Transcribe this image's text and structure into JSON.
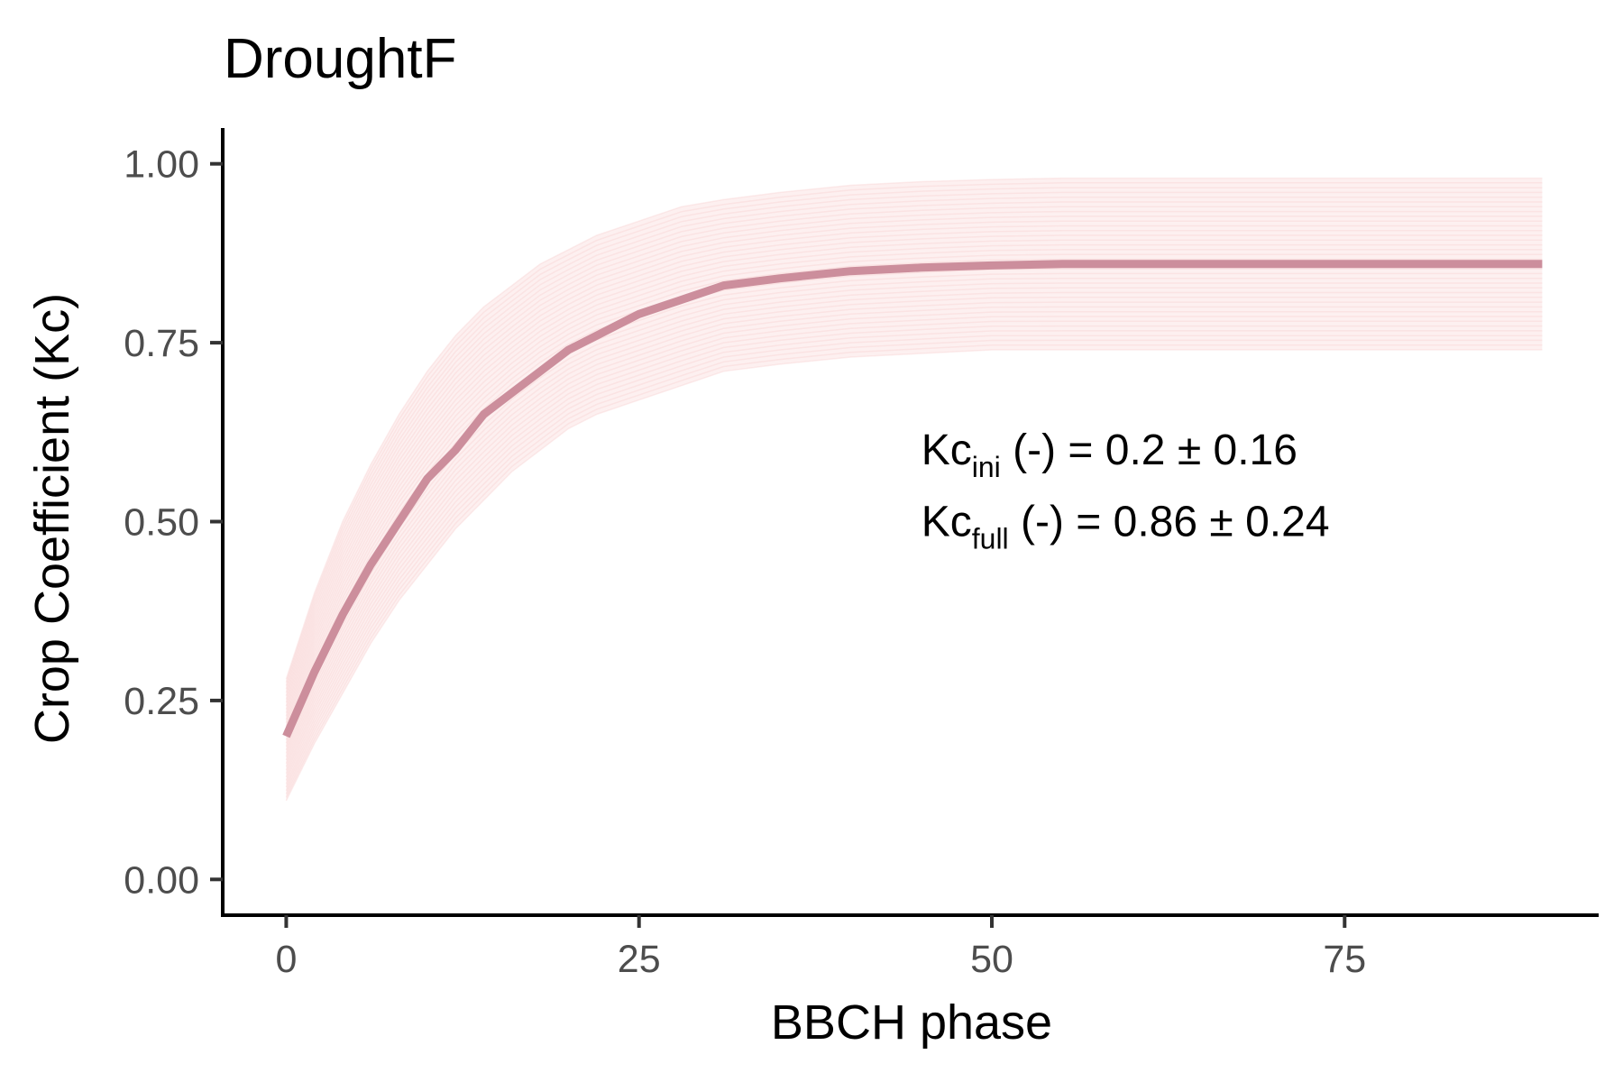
{
  "chart_data": {
    "type": "line",
    "title": "DroughtF",
    "xlabel": "BBCH phase",
    "ylabel": "Crop Coefficient (Kc)",
    "xlim": [
      -4.5,
      93
    ],
    "ylim": [
      -0.05,
      1.05
    ],
    "x_ticks": [
      0,
      25,
      50,
      75
    ],
    "x_tick_labels": [
      "0",
      "25",
      "50",
      "75"
    ],
    "y_ticks": [
      0,
      0.25,
      0.5,
      0.75,
      1.0
    ],
    "y_tick_labels": [
      "0.00",
      "0.25",
      "0.50",
      "0.75",
      "1.00"
    ],
    "grid": false,
    "legend": "none",
    "series": [
      {
        "role": "mean-fit",
        "color": "#cc8e9c",
        "x": [
          0,
          2,
          4,
          6,
          8,
          10,
          12,
          14,
          16,
          18,
          20,
          22,
          25,
          28,
          31,
          35,
          40,
          45,
          50,
          55,
          60,
          65,
          70,
          75,
          80,
          85,
          89
        ],
        "y": [
          0.2,
          0.29,
          0.37,
          0.44,
          0.5,
          0.56,
          0.6,
          0.65,
          0.68,
          0.71,
          0.74,
          0.76,
          0.79,
          0.81,
          0.83,
          0.84,
          0.85,
          0.855,
          0.858,
          0.86,
          0.86,
          0.86,
          0.86,
          0.86,
          0.86,
          0.86,
          0.86
        ]
      }
    ],
    "uncertainty_band": {
      "color": "#fbe3e3",
      "x": [
        0,
        2,
        4,
        6,
        8,
        10,
        12,
        14,
        16,
        18,
        20,
        22,
        25,
        28,
        31,
        35,
        40,
        45,
        50,
        55,
        60,
        65,
        70,
        75,
        80,
        85,
        89
      ],
      "y_upper": [
        0.28,
        0.4,
        0.5,
        0.58,
        0.65,
        0.71,
        0.76,
        0.8,
        0.83,
        0.86,
        0.88,
        0.9,
        0.92,
        0.94,
        0.95,
        0.96,
        0.97,
        0.975,
        0.978,
        0.98,
        0.98,
        0.98,
        0.98,
        0.98,
        0.98,
        0.98,
        0.98
      ],
      "y_lower": [
        0.11,
        0.19,
        0.26,
        0.33,
        0.39,
        0.44,
        0.49,
        0.53,
        0.57,
        0.6,
        0.63,
        0.65,
        0.67,
        0.69,
        0.71,
        0.72,
        0.73,
        0.735,
        0.74,
        0.74,
        0.74,
        0.74,
        0.74,
        0.74,
        0.74,
        0.74,
        0.74
      ]
    },
    "annotations": [
      {
        "base": "Kc",
        "sub": "ini",
        "rest": " (-) = 0.2 ± 0.16",
        "x": 45,
        "y": 0.6
      },
      {
        "base": "Kc",
        "sub": "full",
        "rest": " (-) = 0.86 ± 0.24",
        "x": 45,
        "y": 0.5
      }
    ]
  }
}
